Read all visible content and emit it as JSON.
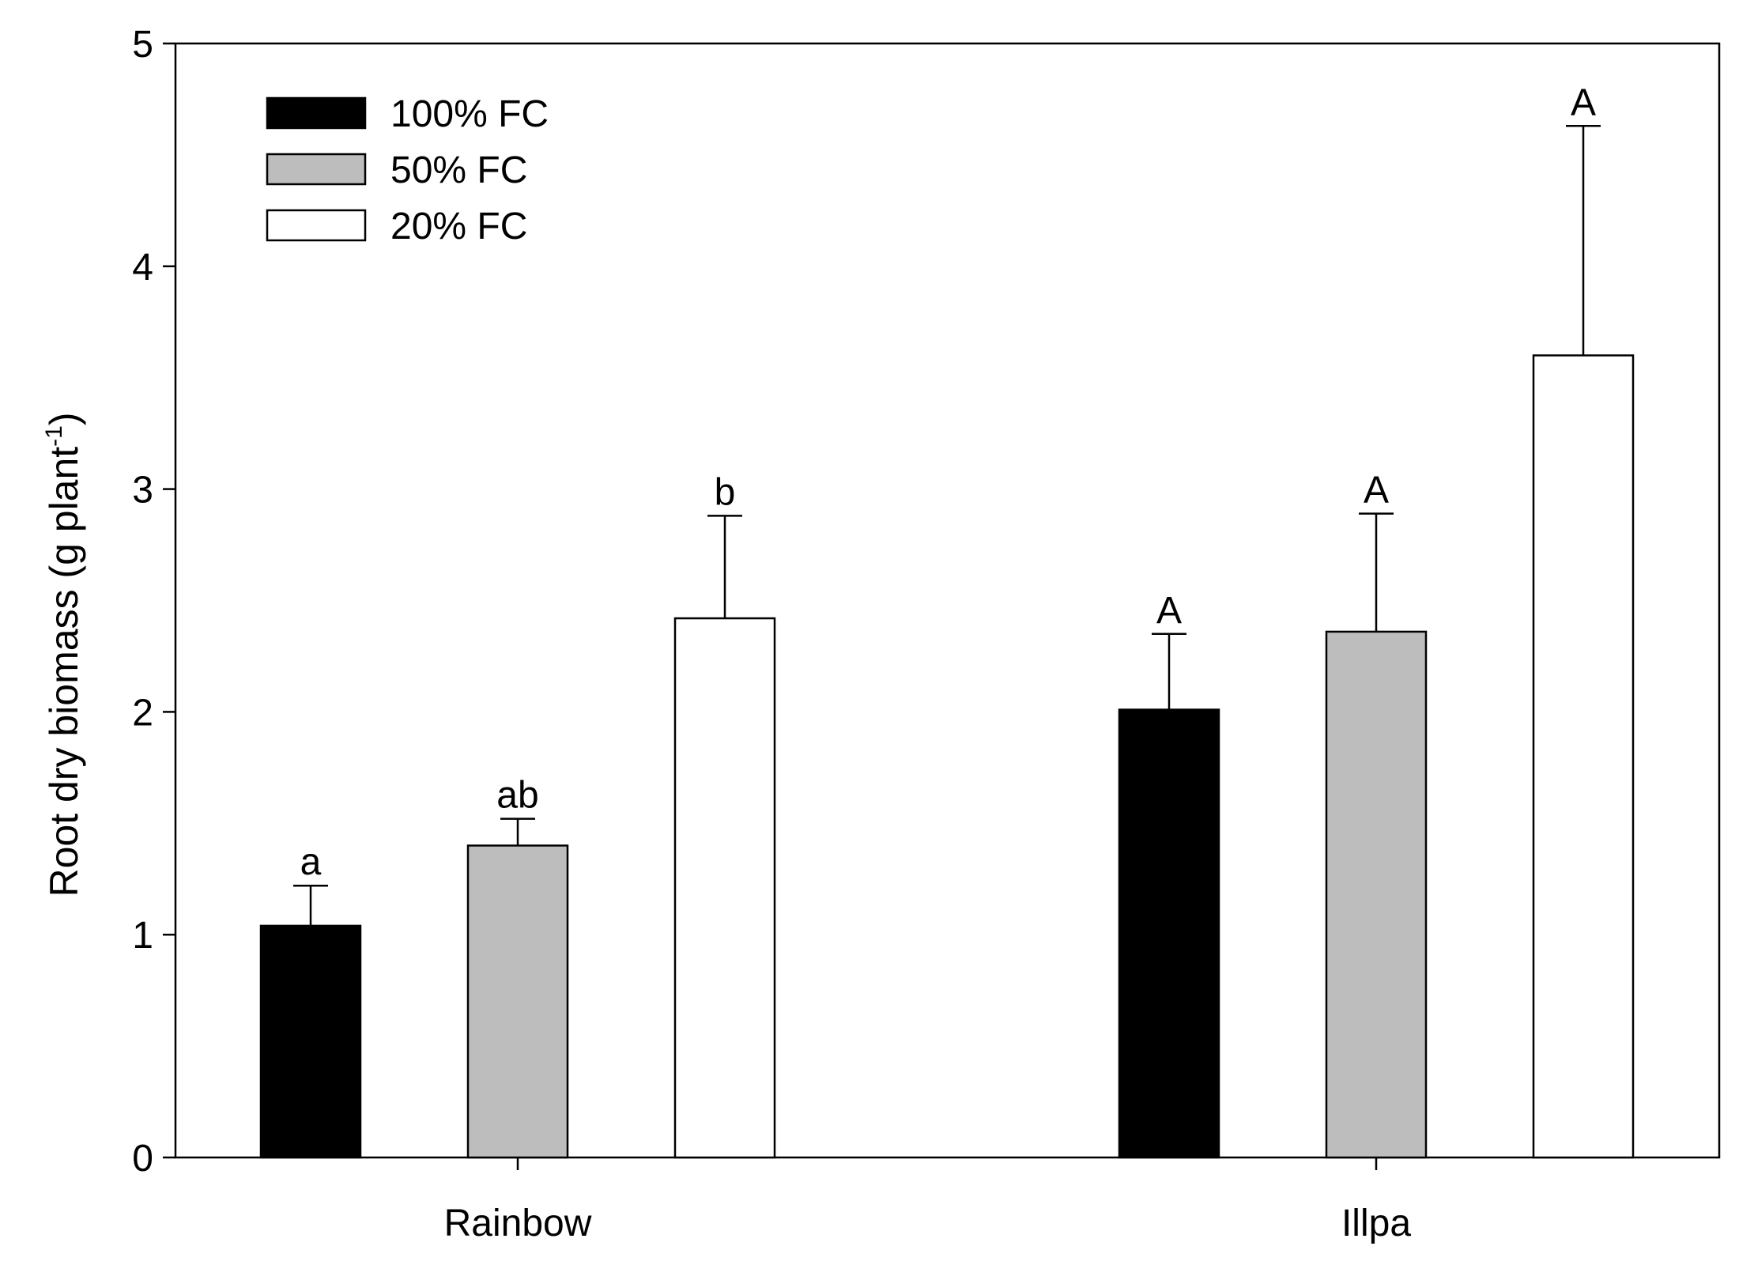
{
  "chart_data": {
    "type": "bar",
    "title": "",
    "xlabel": "",
    "ylabel": "Root dry biomass (g plant",
    "ylabel_superscript": "-1",
    "ylabel_close": ")",
    "ylim": [
      0,
      5
    ],
    "yticks": [
      0,
      1,
      2,
      3,
      4,
      5
    ],
    "ytick_labels": [
      "0",
      "1",
      "2",
      "3",
      "4",
      "5"
    ],
    "categories": [
      "Rainbow",
      "Illpa"
    ],
    "legend_position": "top-left",
    "series": [
      {
        "name": "100% FC",
        "color": "#000000",
        "values": [
          1.04,
          2.01
        ],
        "errors": [
          0.18,
          0.34
        ],
        "letters": [
          "a",
          "A"
        ]
      },
      {
        "name": "50% FC",
        "color": "#bdbdbd",
        "values": [
          1.4,
          2.36
        ],
        "errors": [
          0.12,
          0.53
        ],
        "letters": [
          "ab",
          "A"
        ]
      },
      {
        "name": "20% FC",
        "color": "#ffffff",
        "values": [
          2.42,
          3.6
        ],
        "errors": [
          0.46,
          1.03
        ],
        "letters": [
          "b",
          "A"
        ]
      }
    ]
  }
}
